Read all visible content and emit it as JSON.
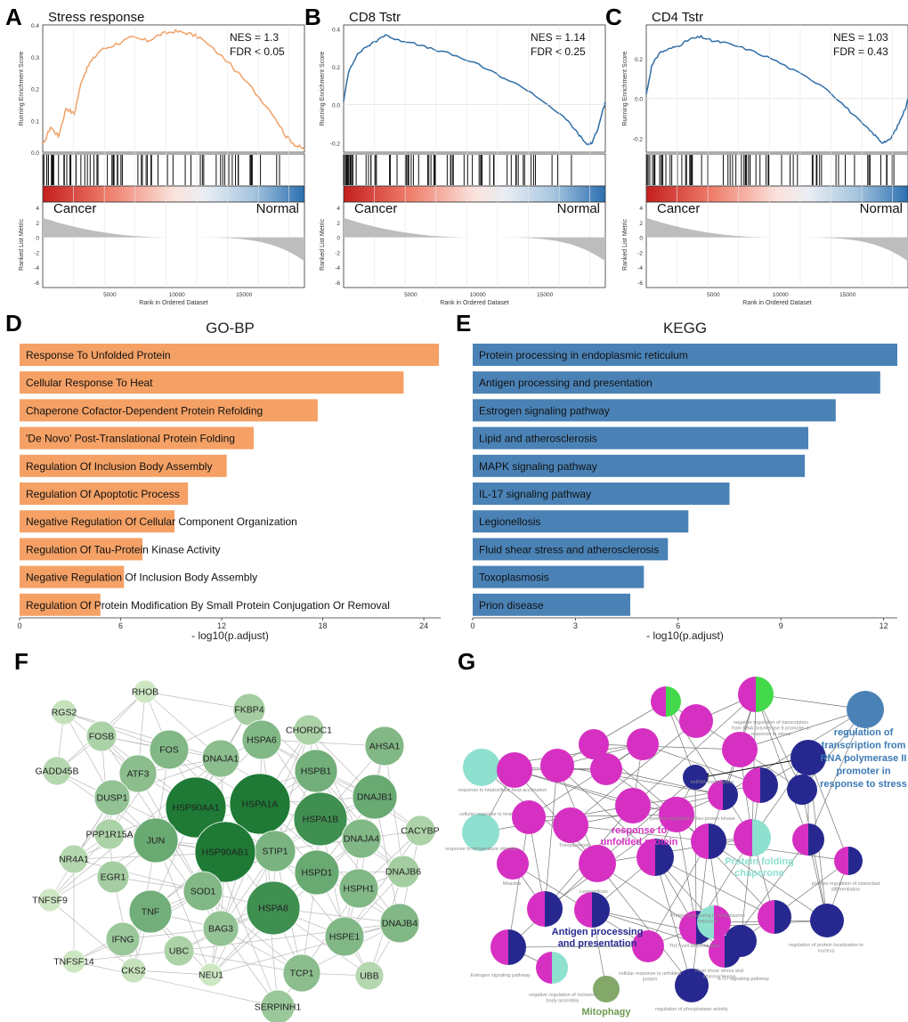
{
  "panel_letters": {
    "a": "A",
    "b": "B",
    "c": "C",
    "d": "D",
    "e": "E",
    "f": "F",
    "g": "G"
  },
  "colors": {
    "orange": "#f5a165",
    "blue": "#4a82b6",
    "gsea_orange": "#f0a066",
    "gsea_blue": "#2f6ea6",
    "metric_gray": "#bdbdbd",
    "node_green_dark": "#1e7a35",
    "node_green_light": "#d4ecc8",
    "magenta": "#d630c2",
    "navy": "#27288f",
    "teal": "#8ee0cf"
  },
  "gsea": [
    {
      "title": "Stress response",
      "nes": "NES = 1.3",
      "fdr": "FDR < 0.05",
      "ylabel": "Running Enrichment Score",
      "yticks": [
        "0.0",
        "0.1",
        "0.2",
        "0.3",
        "0.4"
      ],
      "left_label": "Cancer",
      "right_label": "Normal",
      "metric_label": "Ranked List Metric",
      "metric_ticks": [
        "4",
        "2",
        "0",
        "-2",
        "-4",
        "-6"
      ],
      "xlabel": "Rank in Ordered Dataset",
      "xticks": [
        "5000",
        "10000",
        "15000"
      ]
    },
    {
      "title": "CD8 Tstr",
      "nes": "NES = 1.14",
      "fdr": "FDR < 0.25",
      "ylabel": "Running Enrichment Score",
      "yticks": [
        "-0.2",
        "0.0",
        "0.2",
        "0.4"
      ],
      "left_label": "Cancer",
      "right_label": "Normal",
      "metric_label": "Ranked List Metric",
      "metric_ticks": [
        "4",
        "2",
        "0",
        "-2",
        "-4",
        "-6"
      ],
      "xlabel": "Rank in Ordered Dataset",
      "xticks": [
        "5000",
        "10000",
        "15000"
      ]
    },
    {
      "title": "CD4 Tstr",
      "nes": "NES = 1.03",
      "fdr": "FDR = 0.43",
      "ylabel": "Running Enrichment Score",
      "yticks": [
        "-0.2",
        "0.0",
        "0.2"
      ],
      "left_label": "Cancer",
      "right_label": "Normal",
      "metric_label": "Ranked List Metric",
      "metric_ticks": [
        "4",
        "2",
        "0",
        "-2",
        "-4",
        "-6"
      ],
      "xlabel": "Rank in Ordered Dataset",
      "xticks": [
        "5000",
        "10000",
        "15000"
      ]
    }
  ],
  "network_f_nodes": [
    "RHOB",
    "FKBP4",
    "RGS2",
    "CHORDC1",
    "FOSB",
    "FOS",
    "HSPA6",
    "AHSA1",
    "ATF3",
    "DNAJA1",
    "HSPB1",
    "DNAJB1",
    "GADD45B",
    "DUSP1",
    "HSP90AA1",
    "HSPA1A",
    "HSPA1B",
    "CACYBP",
    "PPP1R15A",
    "JUN",
    "STIP1",
    "DNAJA4",
    "NR4A1",
    "HSP90AB1",
    "HSPD1",
    "DNAJB6",
    "EGR1",
    "TNF",
    "SOD1",
    "HSPH1",
    "HSPA8",
    "TNFSF9",
    "IFNG",
    "BAG3",
    "HSPE1",
    "DNAJB4",
    "CKS2",
    "UBC",
    "TCP1",
    "UBB",
    "TNFSF14",
    "NEU1",
    "SERPINH1"
  ],
  "network_g": {
    "cluster_labels": [
      "response to unfolded protein",
      "Protein folding chaperone",
      "Antigen processing and presentation",
      "Mitophagy"
    ],
    "external_label": "regulation of transcription from RNA polymerase II promoter in response to stress",
    "small_labels": [
      "negative regulation of transcription from RNA polymerase II promoter in response to stress",
      "response to heat",
      "cellular heat acclimation",
      "cellular response to heat",
      "response to temperature stimulus",
      "Measles",
      "Estrogen signaling pathway",
      "negative regulation of inclusion body assembly",
      "cellular response to unfolded protein",
      "Fluid shear stress and atherosclerosis",
      "IL-17 signaling pathway",
      "regulation of phosphatase activity",
      "regulation of protein localization to nucleus",
      "positive regulation of osteoclast differentiation",
      "miRNA transcription",
      "positive regulation of tau-protein kinase",
      "Toxoplasmosis",
      "Legionellosis",
      "Th17 cell differentiation",
      "Protein processing in endoplasmic reticulum"
    ]
  },
  "chart_data": [
    {
      "type": "bar",
      "orientation": "horizontal",
      "title": "GO-BP",
      "xlabel": "- log10(p.adjust)",
      "xlim": [
        0,
        25
      ],
      "xticks": [
        0,
        6,
        12,
        18,
        24
      ],
      "color": "#f5a165",
      "categories": [
        "Response To Unfolded Protein",
        "Cellular Response To Heat",
        "Chaperone Cofactor-Dependent Protein Refolding",
        "'De Novo' Post-Translational Protein Folding",
        "Regulation Of Inclusion Body Assembly",
        "Regulation Of Apoptotic Process",
        "Negative Regulation Of Cellular Component Organization",
        "Regulation Of Tau-Protein Kinase Activity",
        "Negative Regulation Of Inclusion Body Assembly",
        "Regulation Of Protein Modification By Small Protein Conjugation Or Removal"
      ],
      "values": [
        24.9,
        22.8,
        17.7,
        13.9,
        12.3,
        10.0,
        9.2,
        7.3,
        6.2,
        4.8
      ]
    },
    {
      "type": "bar",
      "orientation": "horizontal",
      "title": "KEGG",
      "xlabel": "- log10(p.adjust)",
      "xlim": [
        0,
        12.4
      ],
      "xticks": [
        0,
        3,
        6,
        9,
        12
      ],
      "color": "#4a82b6",
      "categories": [
        "Protein processing in endoplasmic reticulum",
        "Antigen processing and presentation",
        "Estrogen signaling pathway",
        "Lipid and atherosclerosis",
        "MAPK signaling pathway",
        "IL-17 signaling pathway",
        "Legionellosis",
        "Fluid shear stress and atherosclerosis",
        "Toxoplasmosis",
        "Prion disease"
      ],
      "values": [
        12.4,
        11.9,
        10.6,
        9.8,
        9.7,
        7.5,
        6.3,
        5.7,
        5.0,
        4.6
      ]
    }
  ]
}
